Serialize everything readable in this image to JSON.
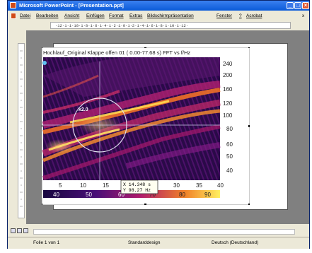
{
  "window": {
    "title": "Microsoft PowerPoint - [Presentation.ppt]",
    "controls": {
      "minimize": "_",
      "maximize": "□",
      "close": "×"
    }
  },
  "menu": {
    "items": [
      "Datei",
      "Bearbeiten",
      "Ansicht",
      "Einfügen",
      "Format",
      "Extras",
      "Bildschirmpräsentation",
      "Fenster",
      "?",
      "Acrobat"
    ],
    "close_glyph": "x"
  },
  "ruler": {
    "text": "·12·1·1·10·1·8·1·6·1·4·1·2·1·0·1·2·1·4·1·6·1·8·1·10·1·12·"
  },
  "plot": {
    "title": "Hochlauf_Original Klappe offen 01 ( 0.00-77.68 s) FFT vs f/Hz",
    "zoom_label": "x2.0",
    "y_ticks": [
      "240",
      "200",
      "160",
      "120",
      "100",
      "80",
      "60",
      "50",
      "40"
    ],
    "x_ticks": [
      "5",
      "10",
      "15",
      "20",
      "25",
      "30",
      "35",
      "40"
    ],
    "colorbar_ticks": [
      "40",
      "50",
      "60",
      "70",
      "80",
      "90"
    ],
    "cursor_readout": {
      "x": "X 14.348 s",
      "y": "Y  98.27 Hz"
    },
    "colors": {
      "bg": "#2a0a48",
      "deep": "#3b0f70",
      "mid": "#8c1c8c",
      "hot": "#e0501c",
      "bright": "#f8d648"
    }
  },
  "status": {
    "slide": "Folie 1 von 1",
    "design": "Standarddesign",
    "language": "Deutsch (Deutschland)"
  }
}
